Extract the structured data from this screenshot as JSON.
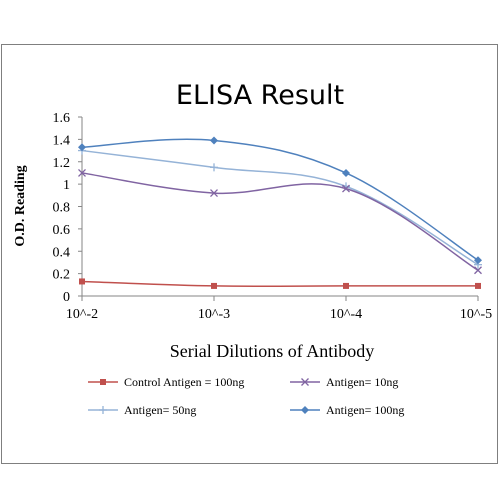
{
  "chart_data": {
    "type": "line",
    "title": "ELISA Result",
    "xlabel": "Serial  Dilutions  of Antibody",
    "ylabel": "O.D. Reading",
    "categories": [
      "10^-2",
      "10^-3",
      "10^-4",
      "10^-5"
    ],
    "yticks": [
      "0",
      "0.2",
      "0.4",
      "0.6",
      "0.8",
      "1",
      "1.2",
      "1.4",
      "1.6"
    ],
    "ylim": [
      0,
      1.6
    ],
    "grid": false,
    "legend_position": "bottom",
    "series": [
      {
        "name": "Control Antigen = 100ng",
        "values": [
          0.13,
          0.09,
          0.09,
          0.09
        ],
        "color": "#c0504d",
        "marker": "square"
      },
      {
        "name": "Antigen= 10ng",
        "values": [
          1.1,
          0.92,
          0.96,
          0.23
        ],
        "color": "#8064a2",
        "marker": "x"
      },
      {
        "name": "Antigen= 50ng",
        "values": [
          1.3,
          1.15,
          0.98,
          0.28
        ],
        "color": "#95b3d7",
        "marker": "plus"
      },
      {
        "name": "Antigen= 100ng",
        "values": [
          1.33,
          1.39,
          1.1,
          0.32
        ],
        "color": "#4f81bd",
        "marker": "diamond"
      }
    ]
  }
}
